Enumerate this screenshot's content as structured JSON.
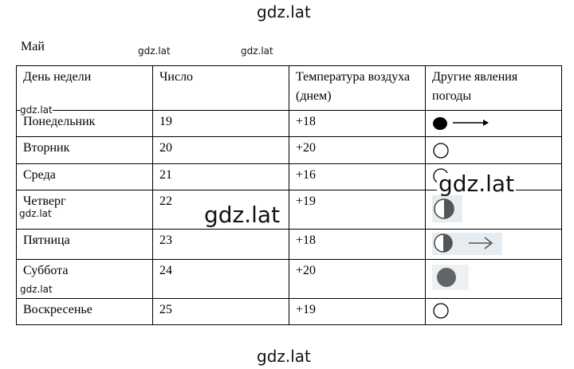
{
  "title": "Май",
  "table": {
    "header": [
      "День недели",
      "Число",
      "Температура воздуха (днем)",
      "Другие явления погоды"
    ],
    "rows": [
      [
        "Понедельник",
        "19",
        "+18"
      ],
      [
        "Вторник",
        "20",
        "+20"
      ],
      [
        "Среда",
        "21",
        "+16"
      ],
      [
        "Четверг",
        "22",
        "+19"
      ],
      [
        "Пятница",
        "23",
        "+18"
      ],
      [
        "Суббота",
        "24",
        "+20"
      ],
      [
        "Воскресенье",
        "25",
        "+19"
      ]
    ]
  },
  "watermarks": [
    "gdz.lat",
    "gdz.lat",
    "gdz.lat",
    "gdz.lat",
    "gdz.lat",
    "gdz.lat",
    "gdz.lat",
    "gdz.lat",
    "gdz.lat"
  ]
}
